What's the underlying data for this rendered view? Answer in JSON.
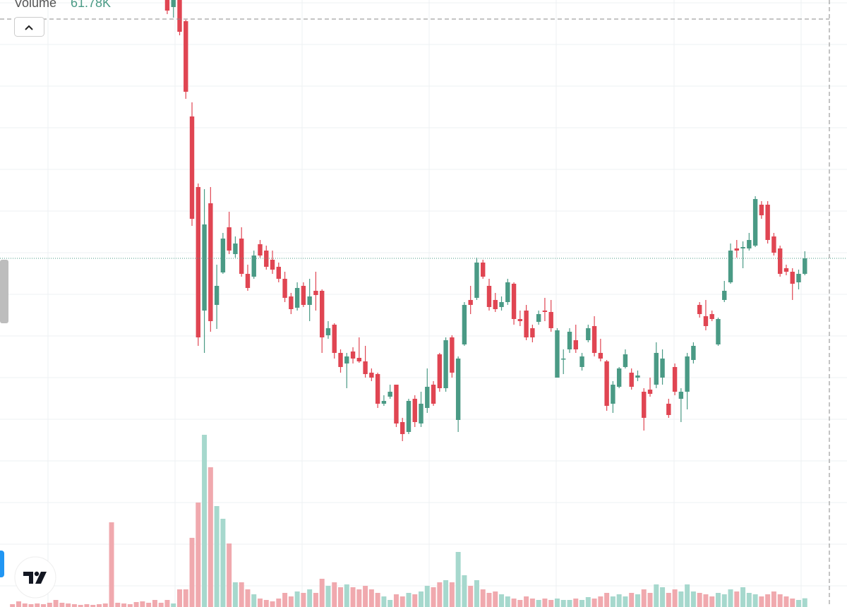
{
  "chart_data": {
    "type": "candlestick",
    "ylim": [
      0,
      86
    ],
    "y2lim": [
      0,
      4300000
    ],
    "grid": true,
    "up_color": "#4a9a85",
    "down_color": "#e04552",
    "volume_up_color": "#a6d8cd",
    "volume_down_color": "#f0a9ae",
    "open": [
      null,
      null,
      null,
      null,
      null,
      null,
      null,
      null,
      null,
      null,
      null,
      null,
      null,
      null,
      null,
      null,
      null,
      null,
      null,
      null,
      null,
      null,
      null,
      null,
      null,
      86.0,
      85.0,
      86.0,
      83.0,
      69.5,
      59.5,
      42.0,
      57.2,
      42.8,
      47.4,
      53.8,
      50.0,
      52.2,
      47.2,
      46.8,
      51.4,
      50.5,
      49.2,
      48.2,
      46.5,
      44.0,
      42.4,
      45.5,
      42.8,
      44.8,
      44.8,
      38.5,
      40.0,
      36.0,
      34.5,
      36.2,
      35.3,
      34.8,
      33.2,
      33.0,
      28.8,
      29.8,
      31.5,
      26.2,
      24.8,
      29.5,
      26.0,
      28.2,
      31.5,
      35.8,
      31.0,
      38.2,
      26.5,
      37.2,
      43.5,
      43.8,
      48.8,
      45.5,
      43.5,
      42.5,
      43.2,
      45.8,
      40.8,
      42.0,
      39.5,
      40.4,
      42.0,
      41.8,
      32.5,
      35.1,
      36.5,
      37.8,
      34.0,
      37.8,
      39.8,
      36.0,
      34.8,
      28.8,
      31.2,
      34.0,
      33.2,
      32.5,
      30.5,
      30.8,
      31.5,
      32.5,
      28.8,
      34.0,
      29.5,
      30.5,
      35.0,
      42.8,
      41.2,
      41.5,
      37.2,
      43.5,
      46.0,
      50.8,
      50.8,
      50.8,
      51.2,
      57.0,
      57.0,
      52.5,
      50.8,
      48.0,
      47.5,
      46.0,
      47.2
    ],
    "high": [
      null,
      null,
      null,
      null,
      null,
      null,
      null,
      null,
      null,
      null,
      null,
      null,
      null,
      null,
      null,
      null,
      null,
      null,
      null,
      null,
      null,
      null,
      null,
      null,
      null,
      86,
      86,
      86,
      83.2,
      71.5,
      60.0,
      59.2,
      59.5,
      48.5,
      53.0,
      56,
      52.5,
      53.8,
      48.5,
      50.5,
      52.0,
      51.2,
      50.5,
      48.8,
      47.5,
      44.5,
      46.0,
      46.0,
      46.5,
      47.5,
      45.0,
      40.5,
      40.2,
      36.5,
      36.0,
      36.8,
      38.2,
      37.0,
      33.8,
      33.2,
      30,
      31.5,
      31.5,
      26.8,
      29.5,
      30.0,
      30.5,
      33.8,
      32.0,
      36.0,
      38.2,
      38.5,
      35.5,
      43.2,
      45.5,
      49.5,
      49.2,
      46.5,
      44.5,
      44.0,
      46.5,
      46.0,
      42.0,
      42.8,
      40.0,
      42.0,
      43.8,
      43.5,
      39.5,
      36.5,
      39.5,
      40.0,
      36.0,
      40.0,
      41.2,
      38.0,
      35.0,
      32.0,
      34.0,
      36.5,
      33.8,
      33.5,
      31.0,
      32.5,
      37.5,
      36.5,
      29.5,
      34.5,
      31.0,
      36.0,
      37.5,
      43.2,
      43.5,
      42.0,
      41.0,
      46.2,
      51.5,
      52.0,
      51.8,
      53.0,
      58.2,
      57.5,
      57.5,
      53.0,
      51.2,
      48.5,
      48.0,
      47.8,
      50.4
    ],
    "low": [
      null,
      null,
      null,
      null,
      null,
      null,
      null,
      null,
      null,
      null,
      null,
      null,
      null,
      null,
      null,
      null,
      null,
      null,
      null,
      null,
      null,
      null,
      null,
      null,
      null,
      84,
      83.5,
      81,
      72.0,
      54,
      37.0,
      36.0,
      39.0,
      39.4,
      47.2,
      50,
      49.5,
      46.8,
      44.8,
      46.5,
      49.5,
      47.8,
      47.2,
      46.0,
      43.2,
      41.5,
      42.0,
      42.5,
      40.5,
      42.0,
      36.0,
      38,
      35.2,
      33.2,
      31.0,
      34.5,
      34.6,
      32.5,
      32.0,
      28.2,
      28.5,
      29.5,
      25.5,
      23.5,
      24.5,
      25.5,
      25.5,
      27.5,
      28.5,
      30.5,
      30.5,
      32.5,
      24.8,
      37.0,
      41.5,
      43.5,
      46.5,
      42.0,
      41.8,
      42.0,
      42.8,
      40.0,
      39.8,
      37.8,
      37.5,
      40.0,
      40.5,
      39.0,
      32.5,
      33.0,
      36.0,
      36.0,
      33.5,
      37.5,
      35.5,
      34.8,
      27.8,
      27.5,
      31.0,
      33.8,
      30.8,
      32.0,
      25.0,
      29.8,
      31.0,
      31.5,
      26.8,
      30.0,
      26.2,
      28.0,
      34.5,
      41.0,
      39.2,
      40.5,
      37.0,
      43.2,
      45.8,
      49.5,
      48.0,
      50.5,
      51.0,
      55.0,
      51.5,
      49.8,
      46.8,
      47.0,
      43.5,
      45.0,
      47.0
    ],
    "close": [
      null,
      null,
      null,
      null,
      null,
      null,
      null,
      null,
      null,
      null,
      null,
      null,
      null,
      null,
      null,
      null,
      null,
      null,
      null,
      null,
      null,
      null,
      null,
      null,
      null,
      84.5,
      86.0,
      81.5,
      73,
      55.0,
      38.2,
      54.2,
      40.5,
      45.5,
      52.2,
      50.5,
      51.5,
      47.2,
      45.2,
      49.8,
      49.8,
      48.2,
      47.8,
      46.5,
      43.8,
      42.2,
      45.2,
      42.8,
      44.0,
      44.2,
      38.2,
      39.5,
      36.0,
      34.0,
      35.5,
      35.2,
      34.8,
      33.0,
      32.5,
      28.8,
      29.2,
      30.5,
      26.0,
      24.5,
      29.2,
      26.2,
      28.8,
      31.2,
      28.8,
      31.0,
      37.8,
      33.2,
      35.2,
      42.8,
      42.8,
      48.8,
      46.8,
      42.5,
      42.2,
      43.2,
      46.0,
      40.8,
      40.5,
      38.2,
      38.2,
      41.5,
      41.8,
      39.5,
      39.2,
      35.2,
      39.0,
      36.5,
      35.5,
      39.5,
      36.0,
      35.2,
      28.5,
      31.5,
      33.8,
      35.8,
      31.2,
      32.8,
      26.8,
      30.2,
      36.0,
      35.2,
      27.2,
      30.5,
      30.5,
      35.5,
      37.0,
      41.5,
      39.8,
      40.8,
      40.8,
      44.8,
      50.5,
      50.5,
      51.0,
      52.0,
      57.8,
      55.5,
      52.0,
      50.2,
      47.2,
      47.5,
      45.8,
      47.2,
      49.4
    ],
    "volume": {
      "name": "Volume",
      "axis": "y2",
      "values": [
        20000,
        40000,
        25000,
        20000,
        25000,
        20000,
        30000,
        50000,
        30000,
        25000,
        20000,
        15000,
        20000,
        15000,
        20000,
        25000,
        600000,
        30000,
        25000,
        20000,
        35000,
        40000,
        30000,
        50000,
        30000,
        50000,
        25000,
        125000,
        125000,
        490000,
        740000,
        1220000,
        990000,
        715000,
        625000,
        450000,
        175000,
        175000,
        125000,
        90000,
        60000,
        50000,
        40000,
        60000,
        100000,
        75000,
        110000,
        100000,
        125000,
        100000,
        200000,
        150000,
        175000,
        140000,
        160000,
        140000,
        125000,
        150000,
        125000,
        100000,
        75000,
        50000,
        90000,
        75000,
        100000,
        90000,
        110000,
        150000,
        140000,
        175000,
        190000,
        175000,
        390000,
        225000,
        150000,
        190000,
        125000,
        100000,
        110000,
        90000,
        75000,
        60000,
        50000,
        75000,
        60000,
        50000,
        60000,
        50000,
        60000,
        50000,
        50000,
        60000,
        50000,
        70000,
        60000,
        75000,
        100000,
        75000,
        90000,
        75000,
        100000,
        90000,
        125000,
        100000,
        160000,
        140000,
        100000,
        125000,
        110000,
        160000,
        110000,
        100000,
        90000,
        75000,
        100000,
        90000,
        125000,
        110000,
        140000,
        100000,
        90000,
        75000,
        90000,
        110000,
        90000,
        75000,
        60000,
        50000,
        61780
      ],
      "value_labels": [
        null,
        null,
        null,
        null,
        null,
        null,
        null,
        null,
        null,
        null,
        null,
        null,
        null,
        null,
        null,
        null,
        null,
        null,
        null,
        null,
        null,
        null,
        null,
        null,
        null,
        null,
        null,
        null,
        null,
        null,
        null,
        null,
        null,
        null,
        null,
        null,
        null,
        null,
        null,
        null,
        null,
        null,
        null,
        null,
        null,
        null,
        null,
        null,
        null,
        null,
        null,
        null,
        null,
        null,
        null,
        null,
        null,
        null,
        null,
        null,
        null,
        null,
        null,
        null,
        null,
        null,
        null,
        null,
        null,
        null,
        null,
        null,
        null,
        null,
        null,
        null,
        null,
        null,
        null,
        null,
        null,
        null,
        null,
        null,
        null,
        null,
        null,
        null,
        null,
        null,
        null,
        null,
        null,
        null,
        null,
        null,
        null,
        null,
        null,
        null,
        null,
        null,
        null,
        null,
        null,
        null,
        null,
        null,
        null,
        null,
        null,
        null,
        null,
        null,
        null,
        null,
        null,
        null,
        null,
        null,
        null,
        null,
        null,
        null,
        null,
        null,
        null,
        null,
        "61.78K"
      ]
    }
  }
}
